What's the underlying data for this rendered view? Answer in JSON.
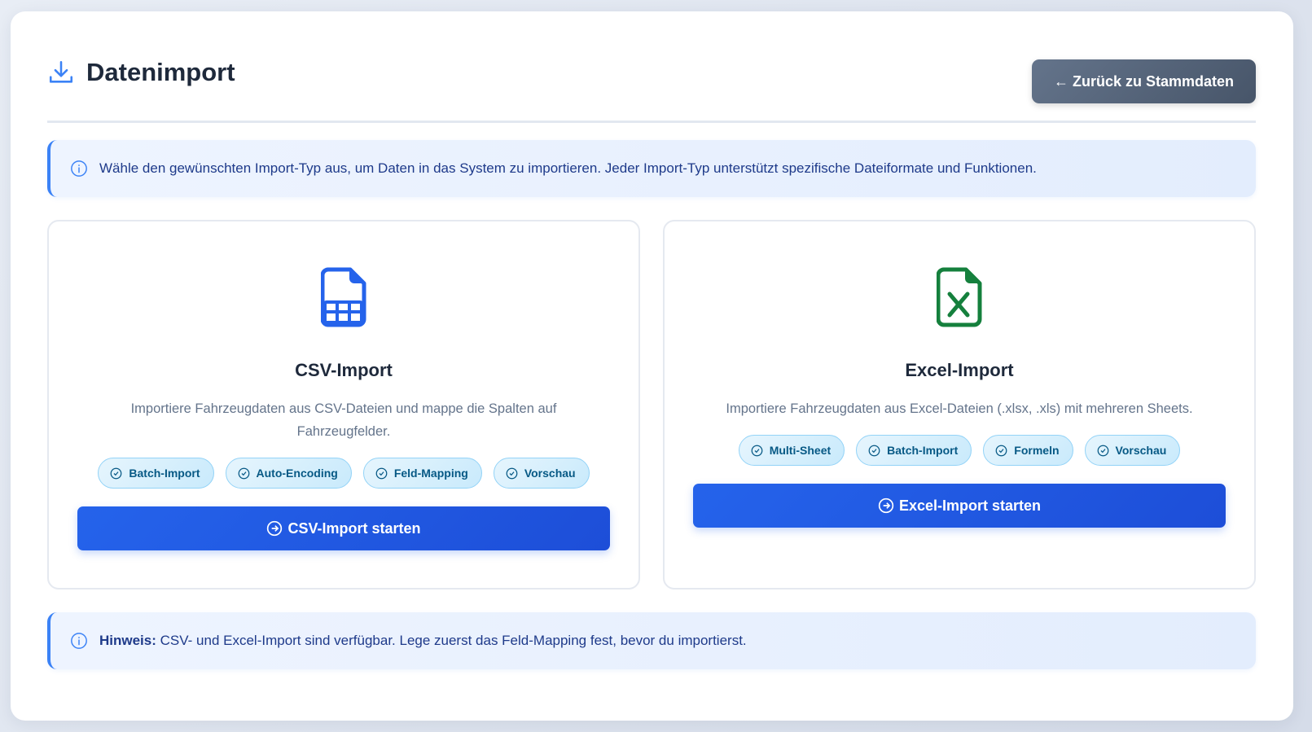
{
  "header": {
    "title": "Datenimport",
    "title_icon": "download-icon",
    "back_button": "← Zurück zu Stammdaten"
  },
  "info": {
    "icon": "info-icon",
    "text": "Wähle den gewünschten Import-Typ aus, um Daten in das System zu importieren. Jeder Import-Typ unterstützt spezifische Dateiformate und Funktionen."
  },
  "cards": [
    {
      "icon": "csv-file-icon",
      "icon_color": "#2563eb",
      "title": "CSV-Import",
      "description": "Importiere Fahrzeugdaten aus CSV-Dateien und mappe die Spalten auf Fahrzeugfelder.",
      "features": [
        "Batch-Import",
        "Auto-Encoding",
        "Feld-Mapping",
        "Vorschau"
      ],
      "button": "CSV-Import starten"
    },
    {
      "icon": "excel-file-icon",
      "icon_color": "#15803d",
      "title": "Excel-Import",
      "description": "Importiere Fahrzeugdaten aus Excel-Dateien (.xlsx, .xls) mit mehreren Sheets.",
      "features": [
        "Multi-Sheet",
        "Batch-Import",
        "Formeln",
        "Vorschau"
      ],
      "button": "Excel-Import starten"
    }
  ],
  "note": {
    "icon": "info-icon",
    "label": "Hinweis:",
    "text": " CSV- und Excel-Import sind verfügbar. Lege zuerst das Feld-Mapping fest, bevor du importierst."
  },
  "colors": {
    "accent": "#2563eb",
    "info_border": "#3b82f6",
    "excel": "#15803d",
    "back_button": "#64748b"
  }
}
